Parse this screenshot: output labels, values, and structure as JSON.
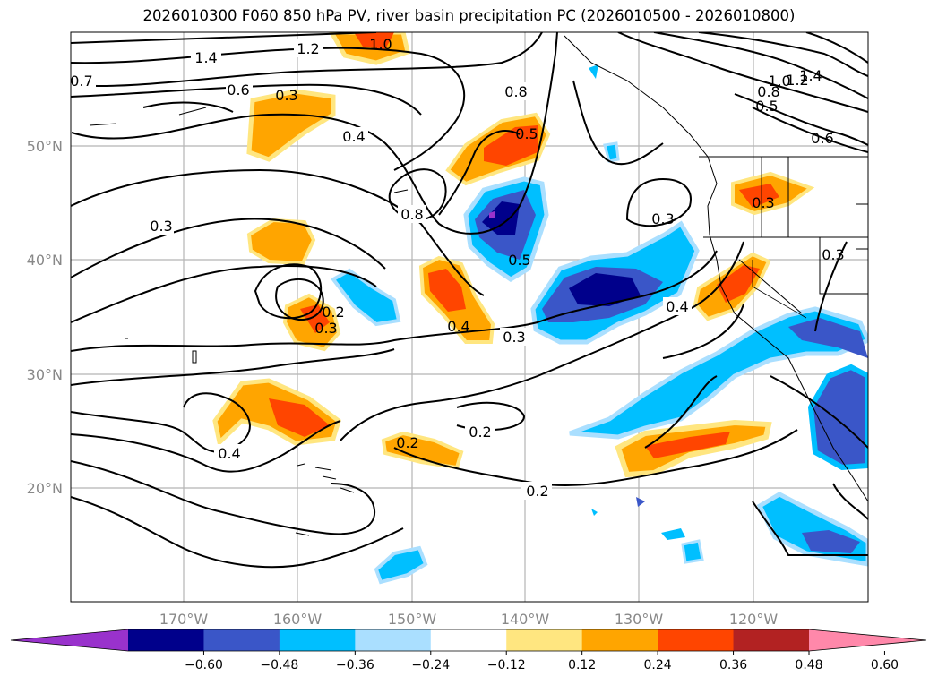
{
  "title": "2026010300 F060 850 hPa PV, river basin precipitation PC (2026010500 - 2026010800)",
  "lon_labels": [
    "170°W",
    "160°W",
    "150°W",
    "140°W",
    "130°W",
    "120°W"
  ],
  "lat_labels": [
    "50°N",
    "40°N",
    "30°N",
    "20°N"
  ],
  "colorbar": {
    "ticks": [
      "−0.60",
      "−0.48",
      "−0.36",
      "−0.24",
      "−0.12",
      "0.12",
      "0.24",
      "0.36",
      "0.48",
      "0.60"
    ],
    "colors": [
      "#9932cc",
      "#00008b",
      "#3a56c8",
      "#00bfff",
      "#aadfff",
      "#ffffff",
      "#ffe680",
      "#ffa500",
      "#ff4500",
      "#b22222",
      "#ff88aa"
    ]
  },
  "contour_labels": [
    "1.4",
    "1.2",
    "1.0",
    "0.7",
    "0.6",
    "0.3",
    "0.4",
    "0.3",
    "0.8",
    "0.5",
    "0.8",
    "0.3",
    "0.5",
    "0.2",
    "0.3",
    "0.4",
    "0.3",
    "0.4",
    "0.2",
    "0.2",
    "0.4",
    "0.2",
    "1.4",
    "1.2",
    "1.0",
    "0.8",
    "0.5",
    "0.6",
    "0.3",
    "0.3"
  ]
}
